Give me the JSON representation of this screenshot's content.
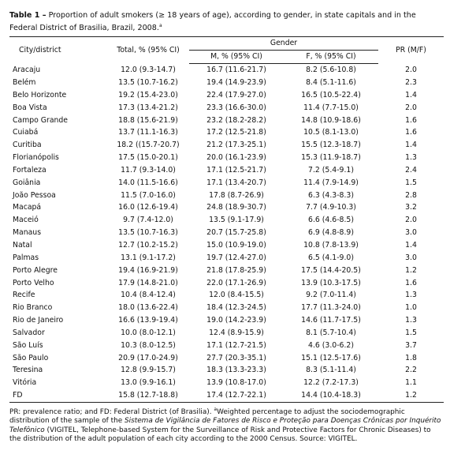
{
  "title": {
    "label": "Table 1 –",
    "text": " Proportion of adult smokers (≥ 18 years of age), according to gender, in state capitals and in the Federal District of Brasilia, Brazil, 2008.",
    "sup": "a"
  },
  "table": {
    "headers": {
      "city": "City/district",
      "total": "Total, % (95% CI)",
      "gender": "Gender",
      "male": "M, % (95% CI)",
      "female": "F, % (95% CI)",
      "pr": "PR (M/F)"
    },
    "rows": [
      [
        "Aracaju",
        "12.0 (9.3-14.7)",
        "16.7 (11.6-21.7)",
        "8.2 (5.6-10.8)",
        "2.0"
      ],
      [
        "Belém",
        "13.5 (10.7-16.2)",
        "19.4 (14.9-23.9)",
        "8.4 (5.1-11.6)",
        "2.3"
      ],
      [
        "Belo Horizonte",
        "19.2 (15.4-23.0)",
        "22.4 (17.9-27.0)",
        "16.5 (10.5-22.4)",
        "1.4"
      ],
      [
        "Boa Vista",
        "17.3 (13.4-21.2)",
        "23.3 (16.6-30.0)",
        "11.4 (7.7-15.0)",
        "2.0"
      ],
      [
        "Campo Grande",
        "18.8 (15.6-21.9)",
        "23.2 (18.2-28.2)",
        "14.8 (10.9-18.6)",
        "1.6"
      ],
      [
        "Cuiabá",
        "13.7 (11.1-16.3)",
        "17.2 (12.5-21.8)",
        "10.5 (8.1-13.0)",
        "1.6"
      ],
      [
        "Curitiba",
        "18.2 ((15.7-20.7)",
        "21.2 (17.3-25.1)",
        "15.5 (12.3-18.7)",
        "1.4"
      ],
      [
        "Florianópolis",
        "17.5 (15.0-20.1)",
        "20.0 (16.1-23.9)",
        "15.3 (11.9-18.7)",
        "1.3"
      ],
      [
        "Fortaleza",
        "11.7 (9.3-14.0)",
        "17.1 (12.5-21.7)",
        "7.2 (5.4-9.1)",
        "2.4"
      ],
      [
        "Goiânia",
        "14.0 (11.5-16.6)",
        "17.1 (13.4-20.7)",
        "11.4 (7.9-14.9)",
        "1.5"
      ],
      [
        "João Pessoa",
        "11.5 (7.0-16.0)",
        "17.8 (8.7-26.9)",
        "6.3 (4.3-8.3)",
        "2.8"
      ],
      [
        "Macapá",
        "16.0 (12.6-19.4)",
        "24.8 (18.9-30.7)",
        "7.7 (4.9-10.3)",
        "3.2"
      ],
      [
        "Maceió",
        "9.7 (7.4-12.0)",
        "13.5 (9.1-17.9)",
        "6.6 (4.6-8.5)",
        "2.0"
      ],
      [
        "Manaus",
        "13.5 (10.7-16.3)",
        "20.7 (15.7-25.8)",
        "6.9 (4.8-8.9)",
        "3.0"
      ],
      [
        "Natal",
        "12.7 (10.2-15.2)",
        "15.0 (10.9-19.0)",
        "10.8 (7.8-13.9)",
        "1.4"
      ],
      [
        "Palmas",
        "13.1 (9.1-17.2)",
        "19.7 (12.4-27.0)",
        "6.5 (4.1-9.0)",
        "3.0"
      ],
      [
        "Porto Alegre",
        "19.4 (16.9-21.9)",
        "21.8 (17.8-25.9)",
        "17.5 (14.4-20.5)",
        "1.2"
      ],
      [
        "Porto Velho",
        "17.9 (14.8-21.0)",
        "22.0 (17.1-26.9)",
        "13.9 (10.3-17.5)",
        "1.6"
      ],
      [
        "Recife",
        "10.4 (8.4-12.4)",
        "12.0 (8.4-15.5)",
        "9.2 (7.0-11.4)",
        "1.3"
      ],
      [
        "Rio Branco",
        "18.0 (13.6-22.4)",
        "18.4 (12.3-24.5)",
        "17.7 (11.3-24.0)",
        "1.0"
      ],
      [
        "Rio de Janeiro",
        "16.6 (13.9-19.4)",
        "19.0 (14.2-23.9)",
        "14.6 (11.7-17.5)",
        "1.3"
      ],
      [
        "Salvador",
        "10.0 (8.0-12.1)",
        "12.4 (8.9-15.9)",
        "8.1 (5.7-10.4)",
        "1.5"
      ],
      [
        "São Luís",
        "10.3 (8.0-12.5)",
        "17.1 (12.7-21.5)",
        "4.6 (3.0-6.2)",
        "3.7"
      ],
      [
        "São Paulo",
        "20.9 (17.0-24.9)",
        "27.7 (20.3-35.1)",
        "15.1 (12.5-17.6)",
        "1.8"
      ],
      [
        "Teresina",
        "12.8 (9.9-15.7)",
        "18.3 (13.3-23.3)",
        "8.3 (5.1-11.4)",
        "2.2"
      ],
      [
        "Vitória",
        "13.0 (9.9-16.1)",
        "13.9 (10.8-17.0)",
        "12.2 (7.2-17.3)",
        "1.1"
      ],
      [
        "FD",
        "15.8 (12.7-18.8)",
        "17.4 (12.7-22.1)",
        "14.4 (10.4-18.3)",
        "1.2"
      ]
    ]
  },
  "footnote": {
    "intro": "PR: prevalence ratio; and FD: Federal District (of Brasilia). ",
    "sup": "a",
    "before": "Weighted percentage to adjust the sociodemographic distribution of the sample of the ",
    "italic": "Sistema de Vigilância de Fatores de Risco e Proteção para Doenças Crônicas por Inquérito Telefônico",
    "after": " (VIGITEL, Telephone-based System for the Surveillance of Risk and Protective Factors for Chronic Diseases) to the distribution of the adult population of each city according to the 2000 Census. Source: VIGITEL."
  }
}
